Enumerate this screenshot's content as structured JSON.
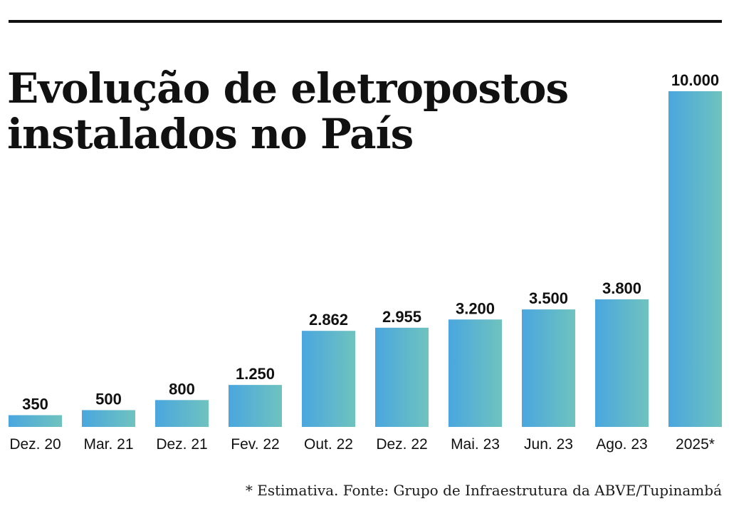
{
  "title": {
    "line1": "Evolução de eletropostos",
    "line2": "instalados no País"
  },
  "footnote": "* Estimativa. Fonte: Grupo de Infraestrutura da ABVE/Tupinambá",
  "colors": {
    "bar_gradient_start": "#4aa6df",
    "bar_gradient_end": "#6fc3be",
    "text": "#111111"
  },
  "chart_data": {
    "type": "bar",
    "title": "Evolução de eletropostos instalados no País",
    "xlabel": "",
    "ylabel": "",
    "ylim": [
      0,
      10000
    ],
    "grid": false,
    "categories": [
      "Dez. 20",
      "Mar. 21",
      "Dez. 21",
      "Fev. 22",
      "Out. 22",
      "Dez. 22",
      "Mai. 23",
      "Jun. 23",
      "Ago. 23",
      "2025*"
    ],
    "values": [
      350,
      500,
      800,
      1250,
      2862,
      2955,
      3200,
      3500,
      3800,
      10000
    ],
    "value_labels": [
      "350",
      "500",
      "800",
      "1.250",
      "2.862",
      "2.955",
      "3.200",
      "3.500",
      "3.800",
      "10.000"
    ]
  }
}
